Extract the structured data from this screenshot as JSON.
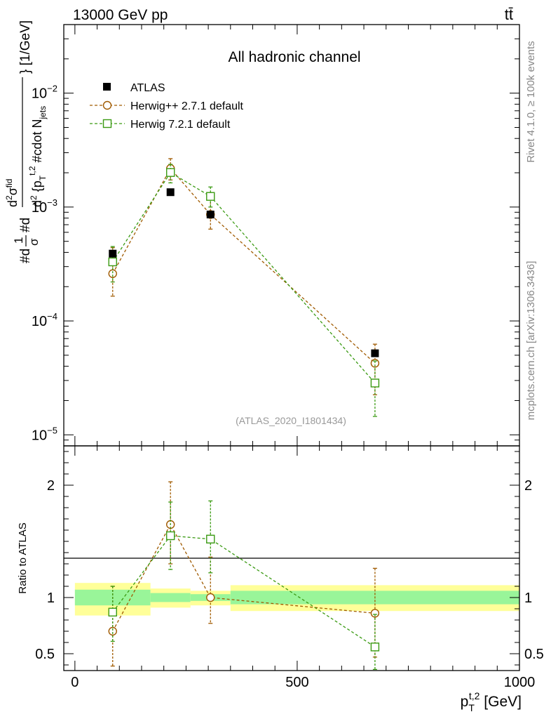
{
  "header": {
    "energy_label": "13000 GeV pp",
    "process_label": "tt̄"
  },
  "side_labels": {
    "rivet": "Rivet 4.1.0, ≥ 100k events",
    "mcplots": "mcplots.cern.ch [arXiv:1306.3436]"
  },
  "colors": {
    "atlas": "#000000",
    "herwigpp": "#a05a00",
    "herwig7": "#3a9a12",
    "band_inner": "#99f599",
    "band_outer": "#ffff99"
  },
  "chart_data": [
    {
      "type": "scatter",
      "title": "All hadronic channel",
      "analysis_tag": "(ATLAS_2020_I1801434)",
      "ylabel": "#d1/σ#d d²σ^fid / d²{p_T^t,2 #cdot N_jets} [1/GeV]",
      "ylabel_parts": {
        "a": "#d",
        "b": "1",
        "c": "σ",
        "d": "#d",
        "e": "d",
        "f": "2",
        "g": "σ",
        "h": "fid",
        "i": "d",
        "j": "2",
        "k": " {p",
        "l": "T",
        "m": "t,2",
        "n": " #cdot N",
        "o": "jets",
        "p": "} [1/GeV]"
      },
      "yscale": "log",
      "ylim": [
        8e-06,
        0.04
      ],
      "xlim": [
        -25,
        1000
      ],
      "ytick_labels": [
        {
          "base": "10",
          "exp": "−5",
          "value": 1e-05
        },
        {
          "base": "10",
          "exp": "−4",
          "value": 0.0001
        },
        {
          "base": "10",
          "exp": "−3",
          "value": 0.001
        },
        {
          "base": "10",
          "exp": "−2",
          "value": 0.01
        }
      ],
      "legend_position": "top-left",
      "series": [
        {
          "name": "ATLAS",
          "marker": "square-filled",
          "x": [
            85,
            215,
            305,
            675
          ],
          "y": [
            0.00039,
            0.00135,
            0.00086,
            5.2e-05
          ]
        },
        {
          "name": "Herwig++ 2.7.1 default",
          "marker": "circle-open",
          "x": [
            85,
            215,
            305,
            675
          ],
          "y": [
            0.00026,
            0.00218,
            0.00086,
            4.25e-05
          ],
          "err_up": [
            0.00018,
            0.00048,
            0.00033,
            2e-05
          ],
          "err_down": [
            9.5e-05,
            0.00045,
            0.00022,
            2e-05
          ]
        },
        {
          "name": "Herwig 7.2.1 default",
          "marker": "square-open",
          "x": [
            85,
            215,
            305,
            675
          ],
          "y": [
            0.00033,
            0.00201,
            0.00124,
            2.85e-05
          ],
          "err_up": [
            0.00012,
            0.00036,
            0.00026,
            1.6e-05
          ],
          "err_down": [
            0.00011,
            0.00038,
            0.00024,
            1.4e-05
          ]
        }
      ]
    },
    {
      "type": "scatter",
      "ylabel": "Ratio to ATLAS",
      "xlabel": "p_T^t,2 [GeV]",
      "xlabel_parts": {
        "p": "p",
        "sub": "T",
        "sup": "t,2",
        "unit": " [GeV]"
      },
      "xlim": [
        -25,
        1000
      ],
      "ylim": [
        0.35,
        2.35
      ],
      "xtick_labels": [
        "0",
        "500",
        "1000"
      ],
      "xtick_values": [
        0,
        500,
        1000
      ],
      "ytick_labels": [
        "0.5",
        "1",
        "2"
      ],
      "ytick_values": [
        0.5,
        1,
        2
      ],
      "uncertainty_bands": [
        {
          "x_low": 0,
          "x_high": 170,
          "inner": [
            0.93,
            1.07
          ],
          "outer": [
            0.84,
            1.13
          ]
        },
        {
          "x_low": 170,
          "x_high": 260,
          "inner": [
            0.96,
            1.04
          ],
          "outer": [
            0.91,
            1.08
          ]
        },
        {
          "x_low": 260,
          "x_high": 350,
          "inner": [
            0.97,
            1.03
          ],
          "outer": [
            0.93,
            1.06
          ]
        },
        {
          "x_low": 350,
          "x_high": 1000,
          "inner": [
            0.94,
            1.06
          ],
          "outer": [
            0.88,
            1.11
          ]
        }
      ],
      "series": [
        {
          "name": "Herwig++ 2.7.1 default",
          "marker": "circle-open",
          "x": [
            85,
            215,
            305,
            675
          ],
          "y": [
            0.7,
            1.65,
            1.0,
            0.86
          ],
          "err_up": [
            0.4,
            0.38,
            0.36,
            0.4
          ],
          "err_down": [
            0.31,
            0.35,
            0.23,
            0.39
          ]
        },
        {
          "name": "Herwig 7.2.1 default",
          "marker": "square-open",
          "x": [
            85,
            215,
            305,
            675
          ],
          "y": [
            0.87,
            1.55,
            1.52,
            0.56
          ],
          "err_up": [
            0.23,
            0.3,
            0.34,
            0.29
          ],
          "err_down": [
            0.26,
            0.3,
            0.3,
            0.2
          ]
        }
      ]
    }
  ]
}
